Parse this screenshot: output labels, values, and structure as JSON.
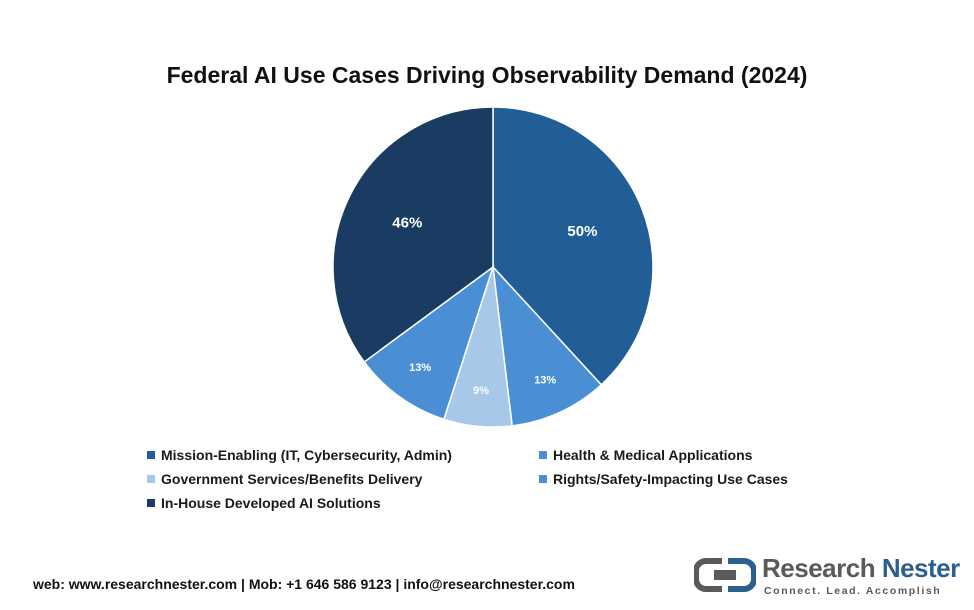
{
  "chart_data": {
    "type": "pie",
    "title": "Federal AI Use Cases Driving Observability Demand (2024)",
    "slices": [
      {
        "label": "Mission-Enabling (IT, Cybersecurity, Admin)",
        "value": 50,
        "display": "50%",
        "color": "#215d96"
      },
      {
        "label": "Health & Medical Applications",
        "value": 13,
        "display": "13%",
        "color": "#4a8fd4"
      },
      {
        "label": "Government Services/Benefits Delivery",
        "value": 9,
        "display": "9%",
        "color": "#a8c8ea"
      },
      {
        "label": "Rights/Safety-Impacting Use Cases",
        "value": 13,
        "display": "13%",
        "color": "#4a8fd4"
      },
      {
        "label": "In-House Developed AI Solutions",
        "value": 46,
        "display": "46%",
        "color": "#1a3c62"
      }
    ],
    "legend_position": "bottom"
  },
  "footer": {
    "contact": "web: www.researchnester.com | Mob: +1 646 586 9123 | info@researchnester.com"
  },
  "logo": {
    "name_part1": "Research",
    "name_part2": "Nester",
    "tagline": "Connect. Lead. Accomplish"
  }
}
